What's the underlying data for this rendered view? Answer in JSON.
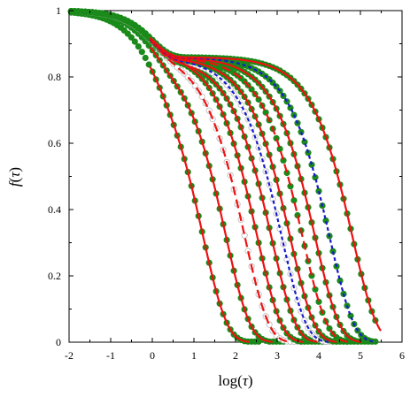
{
  "chart_data": {
    "type": "line",
    "xlabel_func": "log(",
    "xlabel_var": "τ",
    "xlabel_close": ")",
    "ylabel_func": "f",
    "ylabel_open": "(",
    "ylabel_var": "τ",
    "ylabel_close": ")",
    "xlim": [
      -2,
      6
    ],
    "ylim": [
      0,
      1
    ],
    "xticks": [
      -2,
      -1,
      0,
      1,
      2,
      3,
      4,
      5,
      6
    ],
    "yticks": [
      0,
      0.2,
      0.4,
      0.6,
      0.8,
      1
    ],
    "xtick_labels": [
      "-2",
      "-1",
      "0",
      "1",
      "2",
      "3",
      "4",
      "5",
      "6"
    ],
    "ytick_labels": [
      "0",
      "0.2",
      "0.4",
      "0.6",
      "0.8",
      "1"
    ],
    "grid": false,
    "legend": "none",
    "colors": {
      "fit_solid": "#ee1111",
      "fit_dashed_red": "#ee1111",
      "fit_dashed_blue": "#1a1acc",
      "markers_filled": "#1a8a1a",
      "markers_open_stroke": "#b8b8b8"
    },
    "series": [
      {
        "style": "solid-red",
        "marker": "filled",
        "plateau": 0.88,
        "log_tau_half": 1.0,
        "beta": 0.75
      },
      {
        "style": "solid-red",
        "marker": "filled",
        "plateau": 0.88,
        "log_tau_half": 1.55,
        "beta": 0.75
      },
      {
        "style": "dashed-red",
        "marker": "open",
        "plateau": 0.88,
        "log_tau_half": 2.0,
        "beta": 0.75
      },
      {
        "style": "solid-red",
        "marker": "filled",
        "plateau": 0.88,
        "log_tau_half": 2.3,
        "beta": 0.75
      },
      {
        "style": "solid-red",
        "marker": "filled",
        "plateau": 0.86,
        "log_tau_half": 2.65,
        "beta": 0.75
      },
      {
        "style": "dashed-blue",
        "marker": "open",
        "plateau": 0.86,
        "log_tau_half": 2.9,
        "beta": 0.75
      },
      {
        "style": "solid-red",
        "marker": "filled",
        "plateau": 0.86,
        "log_tau_half": 3.1,
        "beta": 0.75
      },
      {
        "style": "dashed-red",
        "marker": "filled",
        "plateau": 0.86,
        "log_tau_half": 3.4,
        "beta": 0.75
      },
      {
        "style": "solid-red",
        "marker": "filled",
        "plateau": 0.86,
        "log_tau_half": 3.7,
        "beta": 0.75
      },
      {
        "style": "dashed-blue",
        "marker": "filled",
        "plateau": 0.86,
        "log_tau_half": 4.05,
        "beta": 0.75
      },
      {
        "style": "solid-red",
        "marker": "filled",
        "plateau": 0.86,
        "log_tau_half": 4.6,
        "beta": 0.75
      }
    ]
  }
}
